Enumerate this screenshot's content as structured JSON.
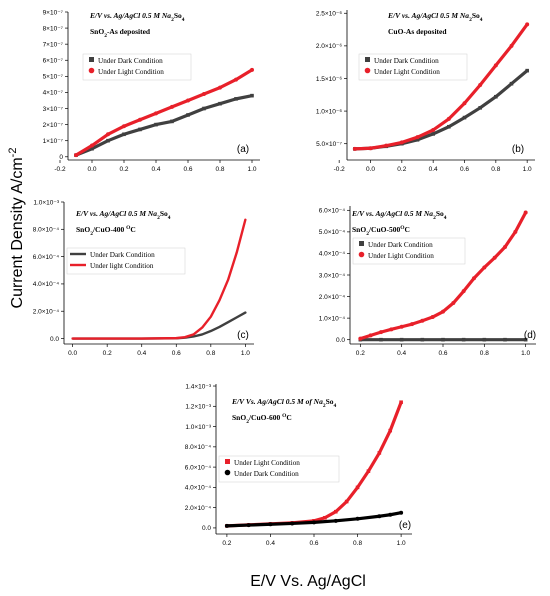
{
  "figure": {
    "ylabel": "Current Density A/cm",
    "ylabel_exp": "-2",
    "xlabel": "E/V Vs. Ag/AgCl"
  },
  "colors": {
    "dark": "#404040",
    "light": "#e8202a",
    "dark_e": "#000000",
    "axis": "#000000"
  },
  "chart_data": [
    {
      "id": "a",
      "type": "scatter",
      "panel_label": "(a)",
      "title_line1": "E/V vs. Ag/AgCl 0.5 M Na",
      "title_line1_sub": "2",
      "title_line1_tail": "So",
      "title_line1_sub2": "4",
      "title_line2": "SnO",
      "title_line2_sub": "2",
      "title_line2_tail": "-As deposited",
      "xlim": [
        -0.15,
        1.05
      ],
      "ylim": [
        -2e-08,
        9e-07
      ],
      "xticks": [
        -0.2,
        0.0,
        0.2,
        0.4,
        0.6,
        0.8,
        1.0
      ],
      "xtick_labels": [
        "-0.2",
        "0.0",
        "0.2",
        "0.4",
        "0.6",
        "0.8",
        "1.0"
      ],
      "yticks": [
        0,
        1e-07,
        2e-07,
        3e-07,
        4e-07,
        5e-07,
        6e-07,
        7e-07,
        8e-07,
        9e-07
      ],
      "ytick_labels": [
        "0",
        "1×10⁻⁷",
        "2×10⁻⁷",
        "3×10⁻⁷",
        "4×10⁻⁷",
        "5×10⁻⁷",
        "6×10⁻⁷",
        "7×10⁻⁷",
        "8×10⁻⁷",
        "9×10⁻⁷"
      ],
      "legend": [
        "Under Dark Condition",
        "Under Light Condition"
      ],
      "series": [
        {
          "name": "Under Dark Condition",
          "color_key": "dark",
          "marker": "square",
          "x": [
            -0.1,
            0.0,
            0.1,
            0.2,
            0.3,
            0.4,
            0.5,
            0.6,
            0.7,
            0.8,
            0.9,
            1.0
          ],
          "y": [
            1e-08,
            5e-08,
            1e-07,
            1.4e-07,
            1.7e-07,
            2e-07,
            2.2e-07,
            2.6e-07,
            3e-07,
            3.3e-07,
            3.6e-07,
            3.8e-07
          ]
        },
        {
          "name": "Under Light Condition",
          "color_key": "light",
          "marker": "circle",
          "x": [
            -0.1,
            0.0,
            0.1,
            0.2,
            0.3,
            0.4,
            0.5,
            0.6,
            0.7,
            0.8,
            0.9,
            1.0
          ],
          "y": [
            1e-08,
            7e-08,
            1.4e-07,
            1.9e-07,
            2.3e-07,
            2.7e-07,
            3.1e-07,
            3.5e-07,
            3.9e-07,
            4.3e-07,
            4.8e-07,
            5.4e-07
          ]
        }
      ]
    },
    {
      "id": "b",
      "type": "scatter",
      "panel_label": "(b)",
      "title_line1": "E/V vs. Ag/AgCl 0.5 M Na",
      "title_line1_sub": "2",
      "title_line1_tail": "So",
      "title_line1_sub2": "4",
      "title_line2": "CuO-As deposited",
      "title_line2_sub": "",
      "title_line2_tail": "",
      "xlim": [
        -0.15,
        1.05
      ],
      "ylim": [
        2.5e-07,
        2.55e-06
      ],
      "xticks": [
        -0.2,
        0.0,
        0.2,
        0.4,
        0.6,
        0.8,
        1.0
      ],
      "xtick_labels": [
        "-0.2",
        "0.0",
        "0.2",
        "0.4",
        "0.6",
        "0.8",
        "1.0"
      ],
      "yticks": [
        5e-07,
        1e-06,
        1.5e-06,
        2e-06,
        2.5e-06
      ],
      "ytick_labels": [
        "5.0×10⁻⁷",
        "1.0×10⁻⁶",
        "1.5×10⁻⁶",
        "2.0×10⁻⁶",
        "2.5×10⁻⁶"
      ],
      "legend": [
        "Under Dark Condition",
        "Under Light Condition"
      ],
      "series": [
        {
          "name": "Under Dark Condition",
          "color_key": "dark",
          "marker": "square",
          "x": [
            -0.1,
            0.0,
            0.1,
            0.2,
            0.3,
            0.4,
            0.5,
            0.6,
            0.7,
            0.8,
            0.9,
            1.0
          ],
          "y": [
            4.2e-07,
            4.3e-07,
            4.6e-07,
            5e-07,
            5.6e-07,
            6.5e-07,
            7.6e-07,
            9e-07,
            1.05e-06,
            1.22e-06,
            1.42e-06,
            1.62e-06
          ]
        },
        {
          "name": "Under Light Condition",
          "color_key": "light",
          "marker": "circle",
          "x": [
            -0.1,
            0.0,
            0.1,
            0.2,
            0.3,
            0.4,
            0.5,
            0.6,
            0.7,
            0.8,
            0.9,
            1.0
          ],
          "y": [
            4.2e-07,
            4.3e-07,
            4.7e-07,
            5.2e-07,
            6e-07,
            7.1e-07,
            8.8e-07,
            1.12e-06,
            1.4e-06,
            1.7e-06,
            2e-06,
            2.33e-06
          ]
        }
      ]
    },
    {
      "id": "c",
      "type": "line",
      "panel_label": "(c)",
      "title_line1": "E/V vs. Ag/AgCl 0.5 M Na",
      "title_line1_sub": "2",
      "title_line1_tail": "So",
      "title_line1_sub2": "4",
      "title_line2": "SnO",
      "title_line2_sub": "2",
      "title_line2_tail": "/CuO-400 ",
      "title_line2_sup": "O",
      "title_line2_end": "C",
      "xlim": [
        -0.05,
        1.05
      ],
      "ylim": [
        -4e-05,
        0.001
      ],
      "xticks": [
        0.0,
        0.2,
        0.4,
        0.6,
        0.8,
        1.0
      ],
      "xtick_labels": [
        "0.0",
        "0.2",
        "0.4",
        "0.6",
        "0.8",
        "1.0"
      ],
      "yticks": [
        0,
        0.0002,
        0.0004,
        0.0006,
        0.0008,
        0.001
      ],
      "ytick_labels": [
        "0.0",
        "2.0×10⁻⁴",
        "4.0×10⁻⁴",
        "6.0×10⁻⁴",
        "8.0×10⁻⁴",
        "1.0×10⁻³"
      ],
      "legend": [
        "Under Dark Condition",
        "Under light  Condition"
      ],
      "series": [
        {
          "name": "Under Dark Condition",
          "color_key": "dark",
          "marker": "line",
          "x": [
            0.0,
            0.2,
            0.4,
            0.6,
            0.65,
            0.7,
            0.75,
            0.8,
            0.85,
            0.9,
            0.95,
            1.0
          ],
          "y": [
            0,
            0,
            0,
            2e-06,
            6e-06,
            1.5e-05,
            3e-05,
            5.5e-05,
            8.5e-05,
            0.00012,
            0.000155,
            0.00019
          ]
        },
        {
          "name": "Under light  Condition",
          "color_key": "light",
          "marker": "line",
          "x": [
            0.0,
            0.2,
            0.4,
            0.6,
            0.65,
            0.7,
            0.75,
            0.8,
            0.85,
            0.9,
            0.95,
            1.0
          ],
          "y": [
            0,
            0,
            0,
            3e-06,
            1e-05,
            3e-05,
            8e-05,
            0.00016,
            0.00028,
            0.00043,
            0.00063,
            0.00087
          ]
        }
      ]
    },
    {
      "id": "d",
      "type": "scatter",
      "panel_label": "(d)",
      "title_line1": "E/V vs. Ag/AgCl 0.5 M Na",
      "title_line1_sub": "2",
      "title_line1_tail": "So",
      "title_line1_sub2": "4",
      "title_line2": "SnO",
      "title_line2_sub": "2",
      "title_line2_tail": "/CuO-500",
      "title_line2_sup": "O",
      "title_line2_end": "C",
      "xlim": [
        0.15,
        1.05
      ],
      "ylim": [
        -2e-05,
        0.00062
      ],
      "xticks": [
        0.2,
        0.4,
        0.6,
        0.8,
        1.0
      ],
      "xtick_labels": [
        "0.2",
        "0.4",
        "0.6",
        "0.8",
        "1.0"
      ],
      "yticks": [
        0,
        0.0001,
        0.0002,
        0.0003,
        0.0004,
        0.0005,
        0.0006
      ],
      "ytick_labels": [
        "0.0",
        "1.0×10⁻⁴",
        "2.0×10⁻⁴",
        "3.0×10⁻⁴",
        "4.0×10⁻⁴",
        "5.0×10⁻⁴",
        "6.0×10⁻⁴"
      ],
      "legend": [
        "Under Dark Condition",
        "Under Light Condition"
      ],
      "series": [
        {
          "name": "Under Dark Condition",
          "color_key": "dark",
          "marker": "square",
          "x": [
            0.2,
            0.3,
            0.4,
            0.5,
            0.6,
            0.7,
            0.8,
            0.9,
            1.0
          ],
          "y": [
            0,
            0,
            0,
            0,
            0,
            0,
            0,
            0,
            0
          ]
        },
        {
          "name": "Under Light Condition",
          "color_key": "light",
          "marker": "circle",
          "x": [
            0.2,
            0.25,
            0.3,
            0.35,
            0.4,
            0.45,
            0.5,
            0.55,
            0.6,
            0.65,
            0.7,
            0.75,
            0.8,
            0.85,
            0.9,
            0.95,
            1.0
          ],
          "y": [
            5e-06,
            2e-05,
            3.5e-05,
            4.8e-05,
            6e-05,
            7.2e-05,
            8.8e-05,
            0.000105,
            0.00013,
            0.00017,
            0.000225,
            0.000285,
            0.000335,
            0.00038,
            0.00043,
            0.0005,
            0.00059
          ]
        }
      ]
    },
    {
      "id": "e",
      "type": "scatter",
      "panel_label": "(e)",
      "title_line1": "E/V Vs. Ag/AgCl 0.5 M of Na",
      "title_line1_sub": "2",
      "title_line1_tail": "So",
      "title_line1_sub2": "4",
      "title_line2": "SnO",
      "title_line2_sub": "2",
      "title_line2_tail": "/CuO-600 ",
      "title_line2_sup": "O",
      "title_line2_end": "C",
      "xlim": [
        0.15,
        1.05
      ],
      "ylim": [
        -6e-05,
        0.00142
      ],
      "xticks": [
        0.2,
        0.4,
        0.6,
        0.8,
        1.0
      ],
      "xtick_labels": [
        "0.2",
        "0.4",
        "0.6",
        "0.8",
        "1.0"
      ],
      "yticks": [
        0,
        0.0002,
        0.0004,
        0.0006,
        0.0008,
        0.001,
        0.0012,
        0.0014
      ],
      "ytick_labels": [
        "0.0",
        "2.0×10⁻⁴",
        "4.0×10⁻⁴",
        "6.0×10⁻⁴",
        "8.0×10⁻⁴",
        "1.0×10⁻³",
        "1.2×10⁻³",
        "1.4×10⁻³"
      ],
      "legend": [
        "Under Light Condition",
        "Under Dark  Condition"
      ],
      "series": [
        {
          "name": "Under Light Condition",
          "color_key": "light",
          "marker": "square",
          "x": [
            0.2,
            0.3,
            0.4,
            0.5,
            0.6,
            0.65,
            0.7,
            0.75,
            0.8,
            0.85,
            0.9,
            0.95,
            1.0
          ],
          "y": [
            2e-05,
            3e-05,
            4e-05,
            5e-05,
            7e-05,
            0.0001,
            0.00016,
            0.00026,
            0.0004,
            0.00056,
            0.00074,
            0.00096,
            0.00124
          ]
        },
        {
          "name": "Under Dark  Condition",
          "color_key": "dark_e",
          "marker": "circle",
          "x": [
            0.2,
            0.3,
            0.4,
            0.5,
            0.6,
            0.7,
            0.8,
            0.9,
            0.95,
            1.0
          ],
          "y": [
            2e-05,
            2.8e-05,
            3.6e-05,
            4.4e-05,
            5.5e-05,
            7e-05,
            9e-05,
            0.000115,
            0.00013,
            0.00015
          ]
        }
      ]
    }
  ]
}
